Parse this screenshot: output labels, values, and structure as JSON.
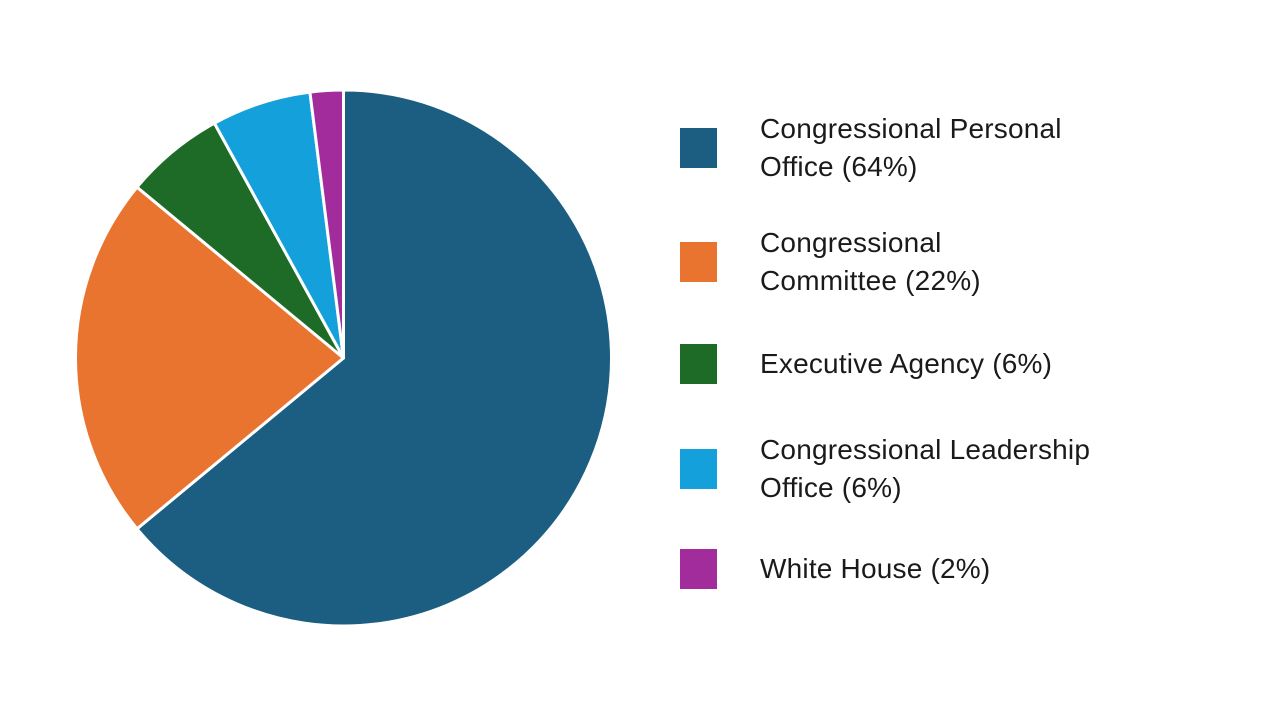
{
  "chart_data": {
    "type": "pie",
    "categories": [
      "Congressional Personal Office",
      "Congressional Committee",
      "Executive Agency",
      "Congressional Leadership Office",
      "White House"
    ],
    "values": [
      64,
      22,
      6,
      6,
      2
    ],
    "unit": "%",
    "colors": [
      "#1b5e82",
      "#e8742f",
      "#1e6b28",
      "#14a0da",
      "#a22c9c"
    ],
    "start_angle_deg": 0,
    "direction": "clockwise",
    "slice_border_color": "#ffffff",
    "slice_border_width": 3,
    "legend_position": "right",
    "title": ""
  },
  "legend": {
    "items": [
      {
        "lines": [
          "Congressional Personal",
          "Office (64%)"
        ],
        "color": "#1b5e82"
      },
      {
        "lines": [
          "Congressional",
          "Committee (22%)"
        ],
        "color": "#e8742f"
      },
      {
        "lines": [
          "Executive Agency (6%)"
        ],
        "color": "#1e6b28"
      },
      {
        "lines": [
          "Congressional Leadership",
          "Office (6%)"
        ],
        "color": "#14a0da"
      },
      {
        "lines": [
          "White House (2%)"
        ],
        "color": "#a22c9c"
      }
    ]
  }
}
